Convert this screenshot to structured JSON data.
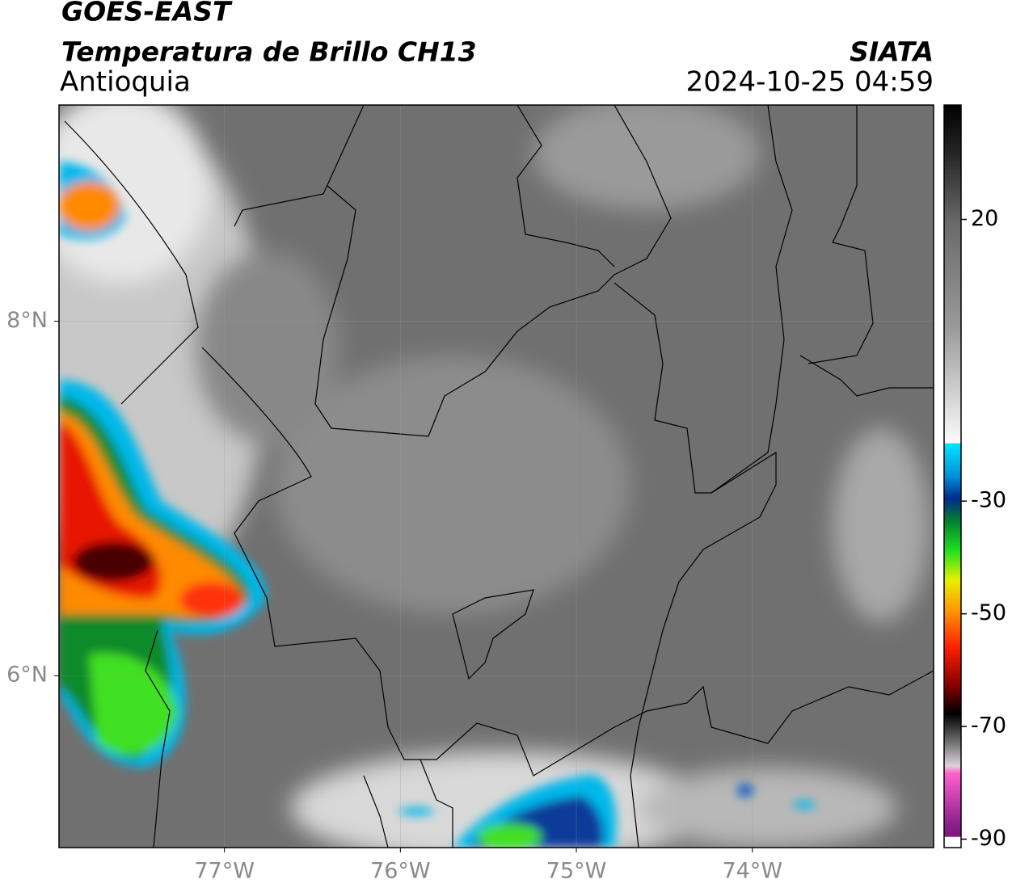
{
  "header": {
    "satellite": "GOES-EAST",
    "product": "Temperatura de Brillo CH13",
    "region": "Antioquia",
    "agency": "SIATA",
    "datetime": "2024-10-25 04:59"
  },
  "map": {
    "lonlim": [
      -77.94,
      -72.97
    ],
    "latlim": [
      5.03,
      9.22
    ],
    "lon_ticks": [
      {
        "value": -77,
        "label": "77°W"
      },
      {
        "value": -76,
        "label": "76°W"
      },
      {
        "value": -75,
        "label": "75°W"
      },
      {
        "value": -74,
        "label": "74°W"
      }
    ],
    "lat_ticks": [
      {
        "value": 8,
        "label": "8°N"
      },
      {
        "value": 6,
        "label": "6°N"
      }
    ]
  },
  "colorbar": {
    "lim": [
      -91.5,
      40.3
    ],
    "ticks": [
      20,
      -30,
      -50,
      -70,
      -90
    ]
  }
}
